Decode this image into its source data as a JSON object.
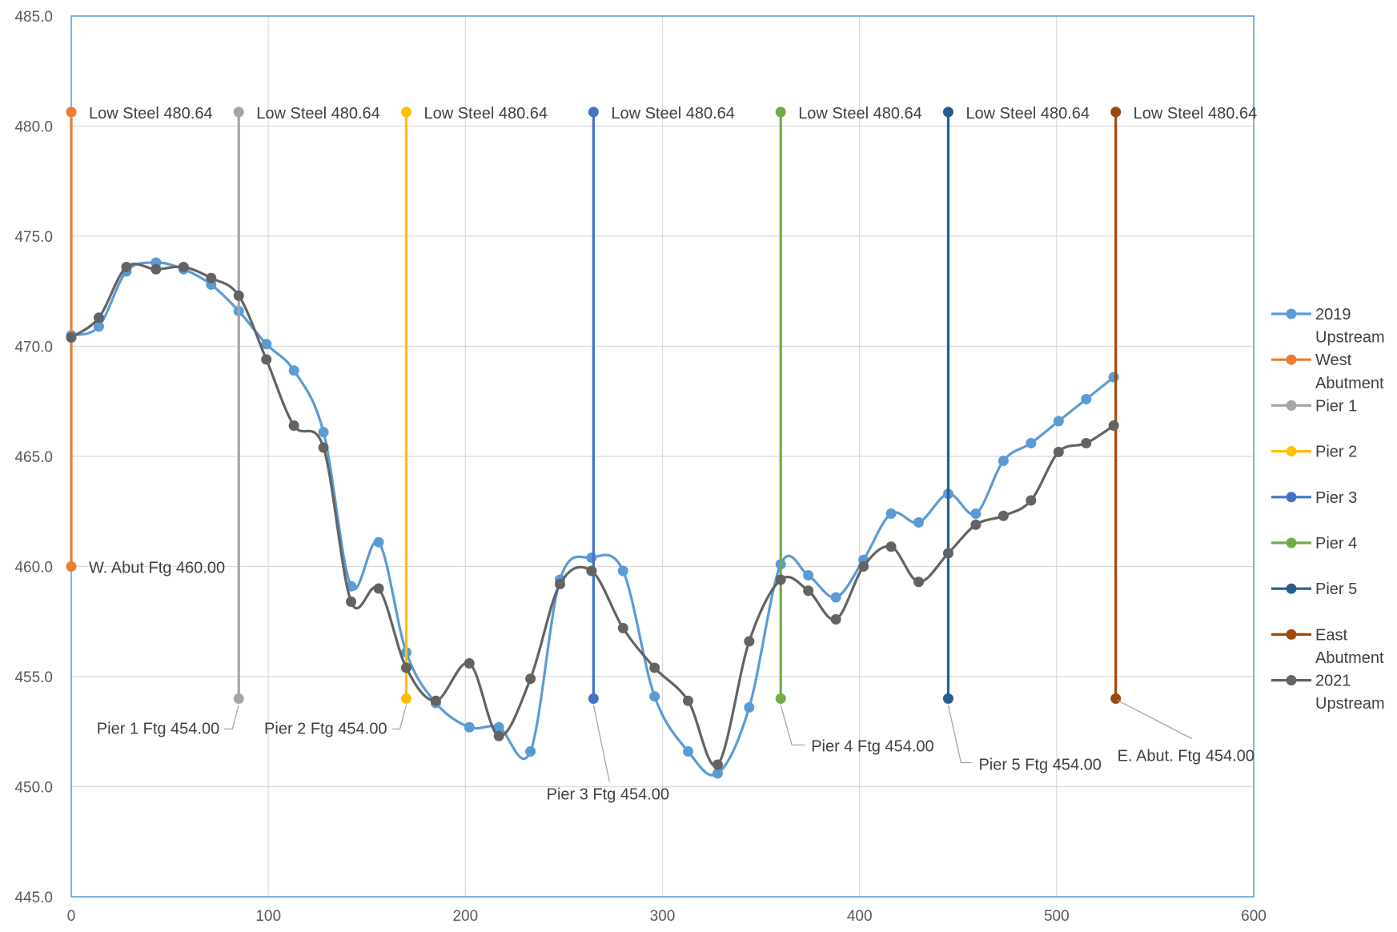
{
  "chart_data": {
    "type": "scatter",
    "xlim": [
      0,
      600
    ],
    "ylim": [
      445,
      485
    ],
    "x_ticks": [
      "0",
      "100",
      "200",
      "300",
      "400",
      "500",
      "600"
    ],
    "y_ticks": [
      "445.0",
      "450.0",
      "455.0",
      "460.0",
      "465.0",
      "470.0",
      "475.0",
      "480.0",
      "485.0"
    ],
    "grid": true,
    "legend_position": "right",
    "series": [
      {
        "name": "2019 Upstream",
        "color": "#5B9BD5",
        "smooth": true,
        "points": [
          [
            0,
            470.5
          ],
          [
            14,
            470.9
          ],
          [
            28,
            473.4
          ],
          [
            43,
            473.8
          ],
          [
            57,
            473.5
          ],
          [
            71,
            472.8
          ],
          [
            85,
            471.6
          ],
          [
            99,
            470.1
          ],
          [
            113,
            468.9
          ],
          [
            128,
            466.1
          ],
          [
            142,
            459.1
          ],
          [
            156,
            461.1
          ],
          [
            170,
            456.1
          ],
          [
            185,
            453.8
          ],
          [
            202,
            452.7
          ],
          [
            217,
            452.7
          ],
          [
            233,
            451.6
          ],
          [
            248,
            459.4
          ],
          [
            264,
            460.4
          ],
          [
            280,
            459.8
          ],
          [
            296,
            454.1
          ],
          [
            313,
            451.6
          ],
          [
            328,
            450.6
          ],
          [
            344,
            453.6
          ],
          [
            360,
            460.1
          ],
          [
            374,
            459.6
          ],
          [
            388,
            458.6
          ],
          [
            402,
            460.3
          ],
          [
            416,
            462.4
          ],
          [
            430,
            462.0
          ],
          [
            445,
            463.3
          ],
          [
            459,
            462.4
          ],
          [
            473,
            464.8
          ],
          [
            487,
            465.6
          ],
          [
            501,
            466.6
          ],
          [
            515,
            467.6
          ],
          [
            529,
            468.6
          ]
        ]
      },
      {
        "name": "West Abutment",
        "color": "#ED7D31",
        "smooth": false,
        "points": [
          [
            0,
            480.64
          ],
          [
            0,
            460.0
          ]
        ]
      },
      {
        "name": "Pier 1",
        "color": "#A5A5A5",
        "smooth": false,
        "points": [
          [
            85,
            480.64
          ],
          [
            85,
            454.0
          ]
        ]
      },
      {
        "name": "Pier 2",
        "color": "#FFC000",
        "smooth": false,
        "points": [
          [
            170,
            480.64
          ],
          [
            170,
            454.0
          ]
        ]
      },
      {
        "name": "Pier 3",
        "color": "#4472C4",
        "smooth": false,
        "points": [
          [
            265,
            480.64
          ],
          [
            265,
            454.0
          ]
        ]
      },
      {
        "name": "Pier 4",
        "color": "#70AD47",
        "smooth": false,
        "points": [
          [
            360,
            480.64
          ],
          [
            360,
            454.0
          ]
        ]
      },
      {
        "name": "Pier 5",
        "color": "#255E91",
        "smooth": false,
        "points": [
          [
            445,
            480.64
          ],
          [
            445,
            454.0
          ]
        ]
      },
      {
        "name": "East Abutment",
        "color": "#9E480E",
        "smooth": false,
        "points": [
          [
            530,
            480.64
          ],
          [
            530,
            454.0
          ]
        ]
      },
      {
        "name": "2021 Upstream",
        "color": "#636363",
        "smooth": true,
        "points": [
          [
            0,
            470.4
          ],
          [
            14,
            471.3
          ],
          [
            28,
            473.6
          ],
          [
            43,
            473.5
          ],
          [
            57,
            473.6
          ],
          [
            71,
            473.1
          ],
          [
            85,
            472.3
          ],
          [
            99,
            469.4
          ],
          [
            113,
            466.4
          ],
          [
            128,
            465.4
          ],
          [
            142,
            458.4
          ],
          [
            156,
            459.0
          ],
          [
            170,
            455.4
          ],
          [
            185,
            453.9
          ],
          [
            202,
            455.6
          ],
          [
            217,
            452.3
          ],
          [
            233,
            454.9
          ],
          [
            248,
            459.2
          ],
          [
            264,
            459.8
          ],
          [
            280,
            457.2
          ],
          [
            296,
            455.4
          ],
          [
            313,
            453.9
          ],
          [
            328,
            451.0
          ],
          [
            344,
            456.6
          ],
          [
            360,
            459.4
          ],
          [
            374,
            458.9
          ],
          [
            388,
            457.6
          ],
          [
            402,
            460.0
          ],
          [
            416,
            460.9
          ],
          [
            430,
            459.3
          ],
          [
            445,
            460.6
          ],
          [
            459,
            461.9
          ],
          [
            473,
            462.3
          ],
          [
            487,
            463.0
          ],
          [
            501,
            465.2
          ],
          [
            515,
            465.6
          ],
          [
            529,
            466.4
          ]
        ]
      }
    ],
    "annotations": [
      {
        "text": "Low Steel 480.64",
        "x": 0,
        "y": 480.64,
        "anchor": "right"
      },
      {
        "text": "Low Steel 480.64",
        "x": 85,
        "y": 480.64,
        "anchor": "right"
      },
      {
        "text": "Low Steel 480.64",
        "x": 170,
        "y": 480.64,
        "anchor": "right"
      },
      {
        "text": "Low Steel 480.64",
        "x": 265,
        "y": 480.64,
        "anchor": "right"
      },
      {
        "text": "Low Steel 480.64",
        "x": 360,
        "y": 480.64,
        "anchor": "right"
      },
      {
        "text": "Low Steel 480.64",
        "x": 445,
        "y": 480.64,
        "anchor": "right"
      },
      {
        "text": "Low Steel 480.64",
        "x": 530,
        "y": 480.64,
        "anchor": "right"
      },
      {
        "text": "W. Abut Ftg 460.00",
        "x": 0,
        "y": 460.0,
        "anchor": "right"
      },
      {
        "text": "Pier 1 Ftg 454.00",
        "x": 85,
        "y": 454.0,
        "anchor": "below-left"
      },
      {
        "text": "Pier 2 Ftg 454.00",
        "x": 170,
        "y": 454.0,
        "anchor": "below-left"
      },
      {
        "text": "Pier 3 Ftg 454.00",
        "x": 265,
        "y": 454.0,
        "anchor": "below"
      },
      {
        "text": "Pier 4 Ftg 454.00",
        "x": 360,
        "y": 454.0,
        "anchor": "below-right"
      },
      {
        "text": "Pier 5 Ftg 454.00",
        "x": 445,
        "y": 454.0,
        "anchor": "below-right"
      },
      {
        "text": "E. Abut. Ftg 454.00",
        "x": 530,
        "y": 454.0,
        "anchor": "below-right"
      }
    ],
    "legend_lines": [
      [
        "2019",
        "Upstream"
      ],
      [
        "West",
        "Abutment"
      ],
      [
        "Pier 1"
      ],
      [
        "Pier 2"
      ],
      [
        "Pier 3"
      ],
      [
        "Pier 4"
      ],
      [
        "Pier 5"
      ],
      [
        "East",
        "Abutment"
      ],
      [
        "2021",
        "Upstream"
      ]
    ]
  }
}
